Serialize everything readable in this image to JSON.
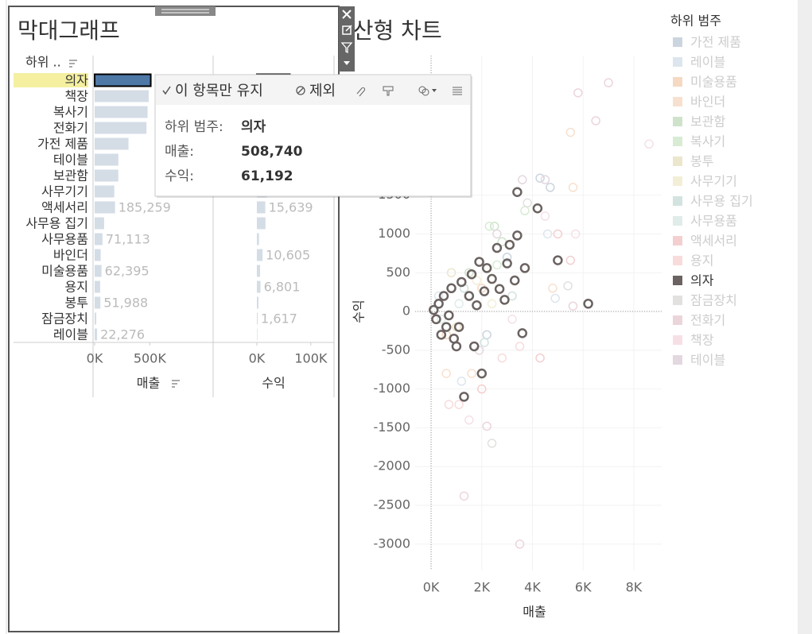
{
  "chart_data": [
    {
      "type": "bar",
      "title": "막대그래프",
      "column_header": "하위 ..",
      "selected_index": 0,
      "highlight_color": "#f5f0a0",
      "categories": [
        "의자",
        "책장",
        "복사기",
        "전화기",
        "가전 제품",
        "테이블",
        "보관함",
        "사무기기",
        "액세서리",
        "사무용 집기",
        "사무용품",
        "바인더",
        "미술용품",
        "용지",
        "봉투",
        "잠금장치",
        "레이블"
      ],
      "series": [
        {
          "name": "매출",
          "color": "#d4dde6",
          "selected_color": "#4e79a7",
          "xlim": [
            0,
            1060000
          ],
          "xticks": [
            {
              "value": 0,
              "label": "0K"
            },
            {
              "value": 500000,
              "label": "500K"
            }
          ],
          "values": [
            508740,
            490000,
            480000,
            470000,
            307000,
            215000,
            214500,
            178000,
            185259,
            86000,
            71113,
            55000,
            62395,
            50000,
            51988,
            15000,
            22276
          ],
          "value_labels": [
            null,
            null,
            null,
            null,
            null,
            null,
            null,
            null,
            "185,259",
            null,
            "71,113",
            null,
            "62,395",
            null,
            "51,988",
            null,
            "22,276"
          ]
        },
        {
          "name": "수익",
          "color": "#d4dde6",
          "selected_color": "#4e79a7",
          "xlim": [
            -78000,
            140000
          ],
          "xticks": [
            {
              "value": 0,
              "label": "0K"
            },
            {
              "value": 100000,
              "label": "100K"
            }
          ],
          "values": [
            61192,
            40000,
            55000,
            45000,
            35000,
            20000,
            21000,
            19000,
            15639,
            16000,
            4000,
            10605,
            6000,
            6801,
            3000,
            1617,
            1000
          ],
          "value_labels": [
            null,
            null,
            null,
            null,
            null,
            null,
            null,
            null,
            "15,639",
            null,
            null,
            "10,605",
            null,
            "6,801",
            null,
            "1,617",
            null
          ]
        }
      ]
    },
    {
      "type": "scatter",
      "title": "분산형 차트",
      "x_label": "매출",
      "y_label": "수익",
      "legend_title": "하위 범주",
      "grid": true,
      "xlim": [
        -630,
        9100
      ],
      "ylim": [
        -3340,
        3300
      ],
      "xticks": [
        {
          "value": 0,
          "label": "0K"
        },
        {
          "value": 2000,
          "label": "2K"
        },
        {
          "value": 4000,
          "label": "4K"
        },
        {
          "value": 6000,
          "label": "6K"
        },
        {
          "value": 8000,
          "label": "8K"
        }
      ],
      "yticks": [
        -3000,
        -2500,
        -2000,
        -1500,
        -1000,
        -500,
        0,
        500,
        1000,
        1500
      ],
      "series": [
        {
          "name": "가전 제품",
          "color": "#cbd5df",
          "x": [
            4300,
            4700,
            3000,
            2200
          ],
          "values": [
            1720,
            1600,
            700,
            -300
          ]
        },
        {
          "name": "레이블",
          "color": "#dde6ee",
          "x": [
            4600,
            4900,
            300,
            1200
          ],
          "values": [
            1000,
            170,
            200,
            -900
          ]
        },
        {
          "name": "미술용품",
          "color": "#f5d9c2",
          "x": [
            2000,
            600
          ],
          "values": [
            300,
            -300
          ]
        },
        {
          "name": "바인더",
          "color": "#f8e0cf",
          "x": [
            5500,
            5600,
            4800,
            1600,
            600
          ],
          "values": [
            2310,
            1600,
            300,
            -800,
            -800
          ]
        },
        {
          "name": "보관함",
          "color": "#cfe3cb",
          "x": [
            2500,
            2800,
            1500
          ],
          "values": [
            1100,
            900,
            500
          ]
        },
        {
          "name": "복사기",
          "color": "#d8ecd3",
          "x": [
            2300,
            3700,
            2600
          ],
          "values": [
            1100,
            1300,
            600
          ]
        },
        {
          "name": "봉투",
          "color": "#ece6cc",
          "x": [
            800,
            1000
          ],
          "values": [
            500,
            -200
          ]
        },
        {
          "name": "사무기기",
          "color": "#f3efd6",
          "x": [
            1800,
            2400
          ],
          "values": [
            400,
            100
          ]
        },
        {
          "name": "사무용 집기",
          "color": "#d3e3e0",
          "x": [
            1300,
            2100,
            3200
          ],
          "values": [
            300,
            -400,
            200
          ]
        },
        {
          "name": "사무용품",
          "color": "#dfecea",
          "x": [
            1100,
            400
          ],
          "values": [
            100,
            -100
          ]
        },
        {
          "name": "액세서리",
          "color": "#f4cfd0",
          "x": [
            5500,
            5000,
            4300,
            2000
          ],
          "values": [
            660,
            1000,
            -600,
            -1000
          ]
        },
        {
          "name": "용지",
          "color": "#f8dcdc",
          "x": [
            700,
            1100,
            2800,
            3500
          ],
          "values": [
            -1200,
            -1200,
            -600,
            -450
          ]
        },
        {
          "name": "의자",
          "color": "#6b6361",
          "highlighted": true,
          "x": [
            3400,
            4200,
            5000,
            6200,
            3600,
            2000,
            1300,
            3100,
            2600,
            2200,
            1900,
            1600,
            1200,
            800,
            500,
            300,
            100,
            200,
            600,
            900,
            1000,
            1700,
            2900,
            3700,
            3400,
            3000,
            2400,
            1500,
            700,
            400,
            1800,
            2700,
            3300,
            1100,
            2100
          ],
          "values": [
            1540,
            1330,
            660,
            100,
            -280,
            -800,
            -1100,
            860,
            820,
            560,
            640,
            480,
            380,
            300,
            200,
            100,
            20,
            -100,
            -200,
            -350,
            -450,
            -450,
            150,
            560,
            980,
            620,
            420,
            200,
            -50,
            -300,
            80,
            290,
            400,
            -200,
            260
          ]
        },
        {
          "name": "잠금장치",
          "color": "#e3e1df",
          "x": [
            5400,
            3800,
            2400
          ],
          "values": [
            330,
            1400,
            -1700
          ]
        },
        {
          "name": "전화기",
          "color": "#ecd5da",
          "x": [
            7000,
            5800,
            6500,
            5600,
            2200,
            3500,
            1300
          ],
          "values": [
            2950,
            2820,
            2460,
            70,
            -1480,
            -3000,
            -2380
          ]
        },
        {
          "name": "책장",
          "color": "#f6e0e6",
          "x": [
            8600,
            4500,
            5700,
            1500,
            3200
          ],
          "values": [
            2160,
            1230,
            1000,
            -1400,
            -100
          ]
        },
        {
          "name": "테이블",
          "color": "#e3d8df",
          "x": [
            3600,
            4500,
            1900,
            2600
          ],
          "values": [
            1700,
            1700,
            -500,
            1000
          ]
        }
      ]
    }
  ],
  "tooltip": {
    "actions": [
      "이 항목만 유지",
      "제외"
    ],
    "rows": [
      {
        "label": "하위 범주:",
        "value": "의자"
      },
      {
        "label": "매출:",
        "value": "508,740"
      },
      {
        "label": "수익:",
        "value": "61,192"
      }
    ]
  }
}
